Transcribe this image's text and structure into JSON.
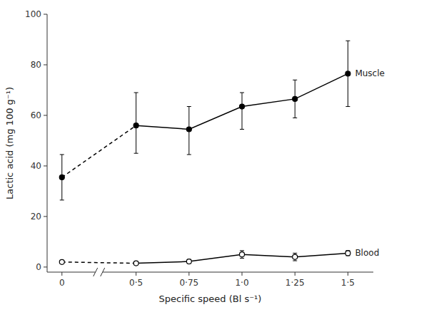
{
  "chart_data": {
    "type": "line",
    "xlabel": "Specific speed (Bl s⁻¹)",
    "ylabel": "Lactic acid (mg 100 g⁻¹)",
    "x": [
      0,
      0.5,
      0.75,
      1.0,
      1.25,
      1.5
    ],
    "series": [
      {
        "name": "Muscle",
        "color": "#000000",
        "marker": "circle",
        "line_style": "solid",
        "values": [
          35.5,
          56.0,
          54.5,
          63.5,
          66.5,
          76.5
        ],
        "yerr_low": [
          9.0,
          11.0,
          10.0,
          9.0,
          7.5,
          13.0
        ],
        "yerr_high": [
          9.0,
          13.0,
          9.0,
          5.5,
          7.5,
          13.0
        ]
      },
      {
        "name": "Blood",
        "color": "#000000",
        "marker": "open circle",
        "line_style": "solid",
        "values": [
          2.0,
          1.5,
          2.2,
          5.0,
          4.0,
          5.5
        ],
        "yerr_low": [
          0.5,
          0.5,
          0.8,
          1.5,
          1.5,
          1.0
        ],
        "yerr_high": [
          0.5,
          0.5,
          0.8,
          1.5,
          1.5,
          1.0
        ]
      }
    ],
    "xlim": [
      -0.07,
      1.62
    ],
    "xticks": [
      0,
      {
        "value": 0.5,
        "label": "0·5"
      },
      {
        "value": 0.75,
        "label": "0·75"
      },
      {
        "value": 1.0,
        "label": "1·0"
      },
      {
        "value": 1.25,
        "label": "1·25"
      },
      {
        "value": 1.5,
        "label": "1·5"
      }
    ],
    "ylim": [
      -2,
      100
    ],
    "yticks": [
      0,
      20,
      40,
      60,
      80,
      100
    ],
    "grid": false
  }
}
